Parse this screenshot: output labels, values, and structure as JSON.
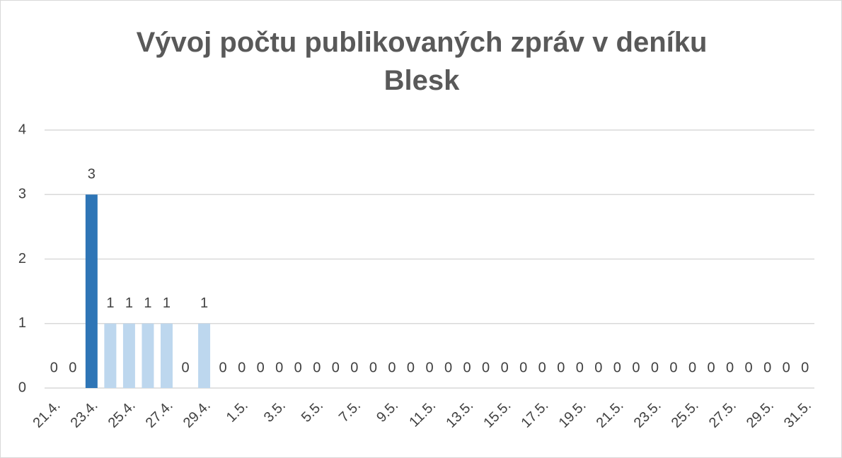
{
  "chart_data": {
    "type": "bar",
    "title": "Vývoj počtu publikovaných zpráv v deníku Blesk",
    "categories": [
      "21.4.",
      null,
      "23.4.",
      null,
      "25.4.",
      null,
      "27.4.",
      null,
      "29.4.",
      null,
      "1.5.",
      null,
      "3.5.",
      null,
      "5.5.",
      null,
      "7.5.",
      null,
      "9.5.",
      null,
      "11.5.",
      null,
      "13.5.",
      null,
      "15.5.",
      null,
      "17.5.",
      null,
      "19.5.",
      null,
      "21.5.",
      null,
      "23.5.",
      null,
      "25.5.",
      null,
      "27.5.",
      null,
      "29.5.",
      null,
      "31.5."
    ],
    "values": [
      0,
      0,
      3,
      1,
      1,
      1,
      1,
      0,
      1,
      0,
      0,
      0,
      0,
      0,
      0,
      0,
      0,
      0,
      0,
      0,
      0,
      0,
      0,
      0,
      0,
      0,
      0,
      0,
      0,
      0,
      0,
      0,
      0,
      0,
      0,
      0,
      0,
      0,
      0,
      0,
      0
    ],
    "colors": [
      "#bdd7ee",
      "#bdd7ee",
      "#2e75b6",
      "#bdd7ee",
      "#bdd7ee",
      "#bdd7ee",
      "#bdd7ee",
      "#bdd7ee",
      "#bdd7ee",
      "#bdd7ee",
      "#bdd7ee",
      "#bdd7ee",
      "#bdd7ee",
      "#bdd7ee",
      "#bdd7ee",
      "#bdd7ee",
      "#bdd7ee",
      "#bdd7ee",
      "#bdd7ee",
      "#bdd7ee",
      "#bdd7ee",
      "#bdd7ee",
      "#bdd7ee",
      "#bdd7ee",
      "#bdd7ee",
      "#bdd7ee",
      "#bdd7ee",
      "#bdd7ee",
      "#bdd7ee",
      "#bdd7ee",
      "#bdd7ee",
      "#bdd7ee",
      "#bdd7ee",
      "#bdd7ee",
      "#bdd7ee",
      "#bdd7ee",
      "#bdd7ee",
      "#bdd7ee",
      "#bdd7ee",
      "#bdd7ee",
      "#bdd7ee"
    ],
    "ylim": [
      0,
      4
    ],
    "yticks": [
      0,
      1,
      2,
      3,
      4
    ],
    "grid": true
  }
}
